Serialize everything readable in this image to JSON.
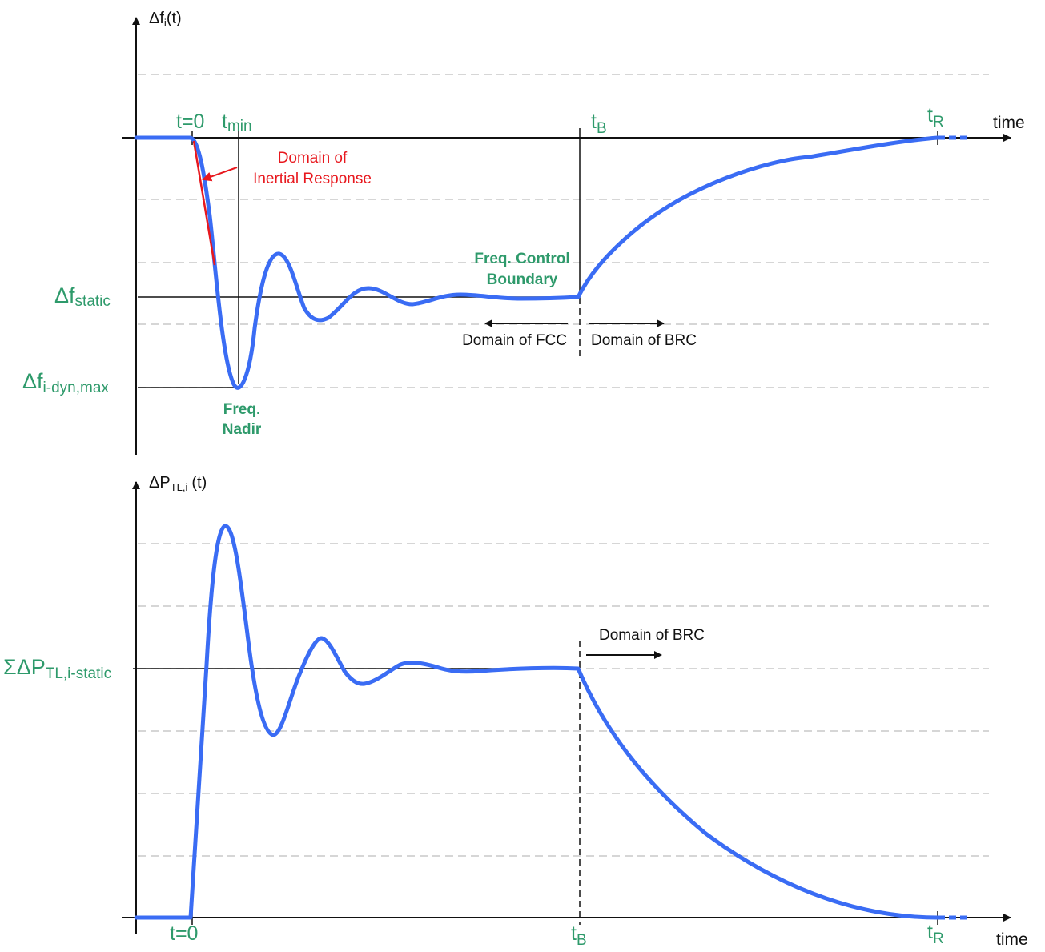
{
  "colors": {
    "curve": "#3a6cf4",
    "label_green": "#2e9a6b",
    "inertial_red": "#e8181e",
    "axis": "#111111",
    "grid": "#c8c8c8"
  },
  "top": {
    "y_label_main": "Δf",
    "y_label_sub": "i",
    "y_label_suffix": "(t)",
    "x_label": "time",
    "t0": "t=0",
    "tmin_main": "t",
    "tmin_sub": "min",
    "tB_main": "t",
    "tB_sub": "B",
    "tR_main": "t",
    "tR_sub": "R",
    "inertial_line1": "Domain of",
    "inertial_line2": "Inertial Response",
    "boundary_line1": "Freq. Control",
    "boundary_line2": "Boundary",
    "static_main": "Δf",
    "static_sub": "static",
    "dyn_main": "Δf",
    "dyn_sub": "i-dyn,max",
    "nadir_line1": "Freq.",
    "nadir_line2": "Nadir",
    "domain_fcc": "Domain of FCC",
    "domain_brc": "Domain of BRC"
  },
  "bottom": {
    "y_label_main": "ΔP",
    "y_label_sub": "TL,i",
    "y_label_suffix": "(t)",
    "x_label": "time",
    "t0": "t=0",
    "tB_main": "t",
    "tB_sub": "B",
    "tR_main": "t",
    "tR_sub": "R",
    "static_main": "ΣΔP",
    "static_sub": "TL,i-static",
    "domain_brc": "Domain of BRC"
  }
}
